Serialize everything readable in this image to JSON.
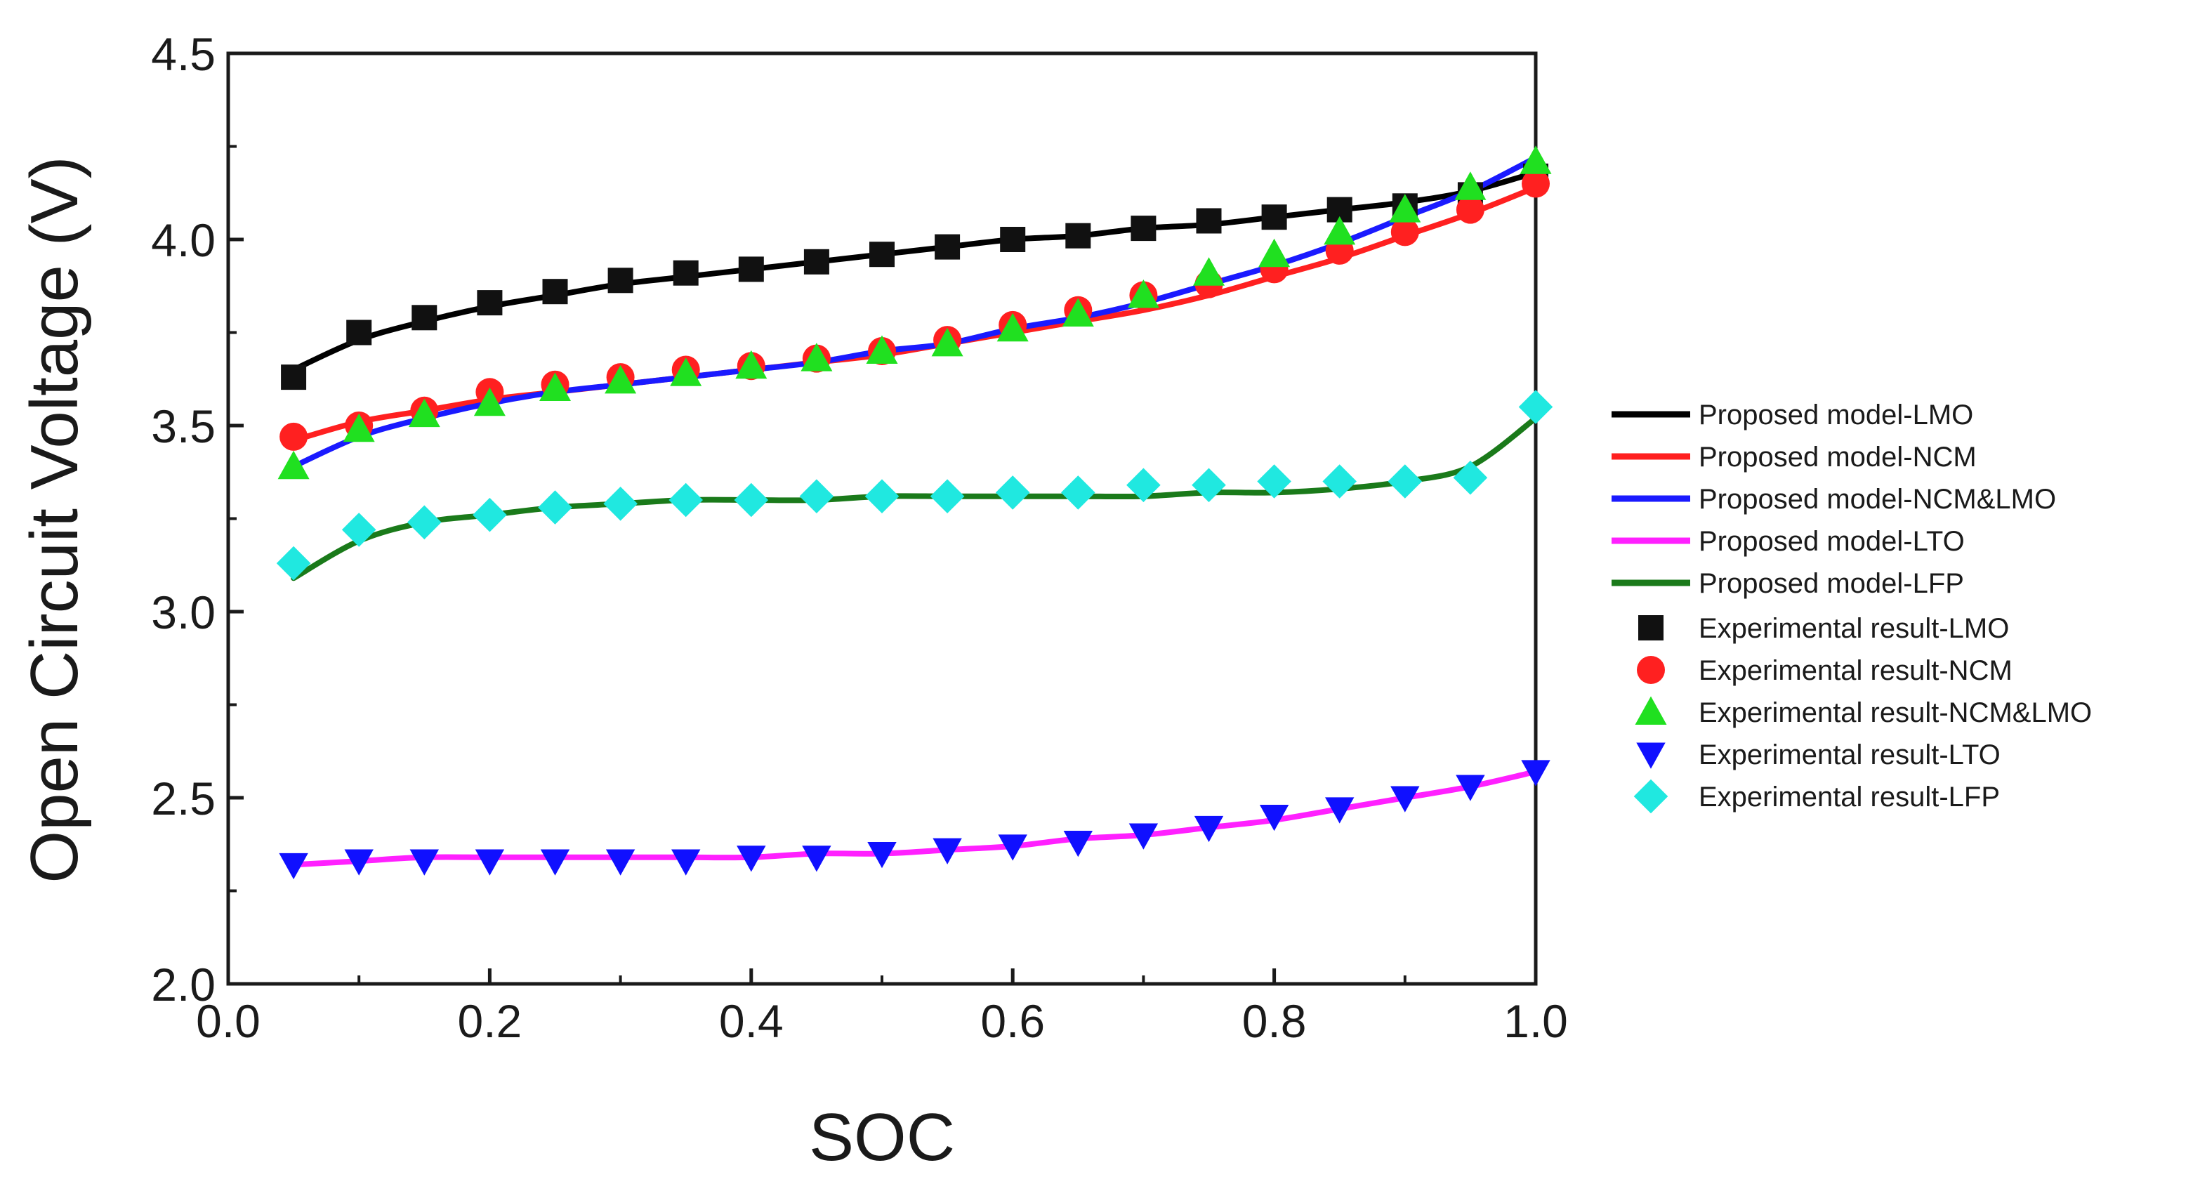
{
  "chart_data": {
    "type": "line",
    "title": "",
    "xlabel": "SOC",
    "ylabel": "Open Circuit Voltage (V)",
    "xlim": [
      0.0,
      1.0
    ],
    "ylim": [
      2.0,
      4.5
    ],
    "xticks": [
      "0.0",
      "0.2",
      "0.4",
      "0.6",
      "0.8",
      "1.0"
    ],
    "yticks": [
      "2.0",
      "2.5",
      "3.0",
      "3.5",
      "4.0",
      "4.5"
    ],
    "grid": false,
    "legend_position": "right",
    "x": [
      0.05,
      0.1,
      0.15,
      0.2,
      0.25,
      0.3,
      0.35,
      0.4,
      0.45,
      0.5,
      0.55,
      0.6,
      0.65,
      0.7,
      0.75,
      0.8,
      0.85,
      0.9,
      0.95,
      1.0
    ],
    "model_series": [
      {
        "name": "Proposed model-LMO",
        "color": "#000000",
        "values": [
          3.65,
          3.73,
          3.78,
          3.82,
          3.85,
          3.88,
          3.9,
          3.92,
          3.94,
          3.96,
          3.98,
          4.0,
          4.01,
          4.03,
          4.04,
          4.06,
          4.08,
          4.1,
          4.13,
          4.18
        ]
      },
      {
        "name": "Proposed model-NCM",
        "color": "#ff2020",
        "values": [
          3.46,
          3.51,
          3.54,
          3.57,
          3.59,
          3.61,
          3.63,
          3.65,
          3.67,
          3.69,
          3.72,
          3.75,
          3.78,
          3.81,
          3.85,
          3.9,
          3.95,
          4.01,
          4.07,
          4.14
        ]
      },
      {
        "name": "Proposed model-NCM&LMO",
        "color": "#1a1aff",
        "values": [
          3.39,
          3.47,
          3.52,
          3.56,
          3.59,
          3.61,
          3.63,
          3.65,
          3.67,
          3.7,
          3.72,
          3.76,
          3.79,
          3.83,
          3.88,
          3.93,
          3.99,
          4.06,
          4.13,
          4.22
        ]
      },
      {
        "name": "Proposed model-LTO",
        "color": "#ff20ff",
        "values": [
          2.32,
          2.33,
          2.34,
          2.34,
          2.34,
          2.34,
          2.34,
          2.34,
          2.35,
          2.35,
          2.36,
          2.37,
          2.39,
          2.4,
          2.42,
          2.44,
          2.47,
          2.5,
          2.53,
          2.57
        ]
      },
      {
        "name": "Proposed model-LFP",
        "color": "#1a7a1a",
        "values": [
          3.09,
          3.19,
          3.24,
          3.26,
          3.28,
          3.29,
          3.3,
          3.3,
          3.3,
          3.31,
          3.31,
          3.31,
          3.31,
          3.31,
          3.32,
          3.32,
          3.33,
          3.35,
          3.39,
          3.52
        ]
      }
    ],
    "experimental_series": [
      {
        "name": "Experimental result-LMO",
        "color": "#111111",
        "marker": "square",
        "values": [
          3.63,
          3.75,
          3.79,
          3.83,
          3.86,
          3.89,
          3.91,
          3.92,
          3.94,
          3.96,
          3.98,
          4.0,
          4.01,
          4.03,
          4.05,
          4.06,
          4.08,
          4.09,
          4.12,
          4.17
        ]
      },
      {
        "name": "Experimental result-NCM",
        "color": "#ff2020",
        "marker": "circle",
        "values": [
          3.47,
          3.5,
          3.54,
          3.59,
          3.61,
          3.63,
          3.65,
          3.66,
          3.68,
          3.7,
          3.73,
          3.77,
          3.81,
          3.85,
          3.88,
          3.92,
          3.97,
          4.02,
          4.08,
          4.15
        ]
      },
      {
        "name": "Experimental result-NCM&LMO",
        "color": "#20e020",
        "marker": "triangle-up",
        "values": [
          3.39,
          3.49,
          3.53,
          3.56,
          3.6,
          3.62,
          3.64,
          3.66,
          3.68,
          3.7,
          3.72,
          3.76,
          3.8,
          3.85,
          3.91,
          3.96,
          4.02,
          4.08,
          4.14,
          4.21
        ]
      },
      {
        "name": "Experimental result-LTO",
        "color": "#1010ff",
        "marker": "triangle-down",
        "values": [
          2.32,
          2.33,
          2.33,
          2.33,
          2.33,
          2.33,
          2.33,
          2.34,
          2.34,
          2.35,
          2.36,
          2.37,
          2.38,
          2.4,
          2.42,
          2.45,
          2.47,
          2.5,
          2.53,
          2.57
        ]
      },
      {
        "name": "Experimental result-LFP",
        "color": "#20e8e0",
        "marker": "diamond",
        "values": [
          3.13,
          3.22,
          3.24,
          3.26,
          3.28,
          3.29,
          3.3,
          3.3,
          3.31,
          3.31,
          3.31,
          3.32,
          3.32,
          3.34,
          3.34,
          3.35,
          3.35,
          3.35,
          3.36,
          3.55
        ]
      }
    ]
  }
}
